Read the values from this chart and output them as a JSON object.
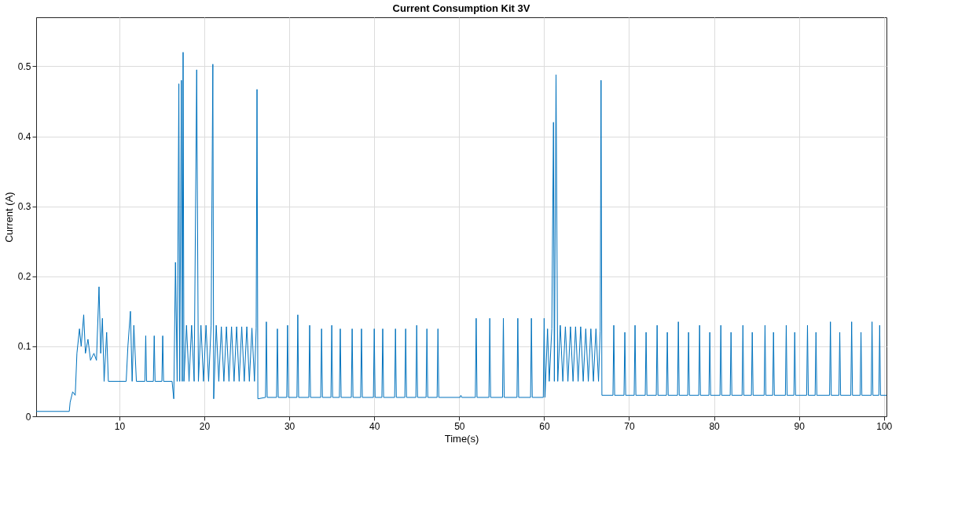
{
  "chart_data": {
    "type": "line",
    "title": "Current Consumption Kit 3V",
    "xlabel": "Time(s)",
    "ylabel": "Current (A)",
    "xlim": [
      0.2,
      100.3
    ],
    "xticks": [
      10,
      20,
      30,
      40,
      50,
      60,
      70,
      80,
      90,
      100
    ],
    "ylim": [
      0,
      0.57
    ],
    "yticks": [
      0,
      0.1,
      0.2,
      0.3,
      0.4,
      0.5
    ],
    "grid": true,
    "legend": false,
    "series": [
      {
        "color": "#0072bd",
        "x": [
          0.2,
          4.1,
          4.2,
          4.5,
          4.8,
          5.0,
          5.3,
          5.5,
          5.8,
          6.0,
          6.3,
          6.6,
          7.0,
          7.3,
          7.6,
          7.8,
          8.0,
          8.2,
          8.5,
          8.7,
          10.8,
          11.0,
          11.3,
          11.5,
          11.7,
          12.0,
          13.0,
          13.1,
          13.2,
          14.0,
          14.1,
          14.2,
          15.0,
          15.1,
          15.2,
          16.2,
          16.4,
          16.6,
          16.8,
          17.0,
          17.1,
          17.3,
          17.4,
          17.5,
          17.6,
          17.9,
          18.2,
          18.5,
          18.8,
          19.1,
          19.3,
          19.6,
          19.9,
          20.2,
          20.5,
          20.8,
          21.0,
          21.1,
          21.4,
          21.7,
          22.0,
          22.3,
          22.6,
          22.9,
          23.2,
          23.5,
          23.8,
          24.1,
          24.4,
          24.7,
          25.0,
          25.3,
          25.6,
          25.9,
          26.1,
          26.2,
          26.3,
          27.2,
          27.3,
          27.4,
          28.5,
          28.6,
          28.7,
          29.7,
          29.8,
          29.9,
          30.9,
          31.0,
          31.1,
          32.3,
          32.4,
          32.5,
          33.7,
          33.8,
          33.9,
          34.9,
          35.0,
          35.1,
          35.9,
          36.0,
          36.1,
          37.3,
          37.4,
          37.5,
          38.4,
          38.5,
          38.6,
          39.9,
          40.0,
          40.1,
          40.9,
          41.0,
          41.1,
          42.4,
          42.5,
          42.6,
          43.6,
          43.7,
          43.8,
          44.9,
          45.0,
          45.1,
          46.1,
          46.2,
          46.3,
          47.4,
          47.5,
          47.6,
          50.1,
          50.2,
          50.3,
          51.9,
          52.0,
          52.1,
          53.5,
          53.6,
          53.7,
          55.1,
          55.2,
          55.3,
          56.8,
          56.9,
          57.0,
          58.4,
          58.5,
          58.6,
          59.9,
          60.0,
          60.1,
          60.4,
          60.6,
          60.9,
          61.1,
          61.2,
          61.4,
          61.6,
          61.9,
          62.2,
          62.5,
          62.8,
          63.1,
          63.4,
          63.7,
          64.0,
          64.3,
          64.6,
          64.9,
          65.2,
          65.5,
          65.8,
          66.1,
          66.4,
          66.6,
          66.7,
          66.8,
          68.1,
          68.2,
          68.3,
          69.4,
          69.5,
          69.6,
          70.6,
          70.7,
          70.8,
          71.9,
          72.0,
          72.1,
          73.2,
          73.3,
          73.4,
          74.4,
          74.5,
          74.6,
          75.7,
          75.8,
          75.9,
          76.9,
          77.0,
          77.1,
          78.2,
          78.3,
          78.4,
          79.4,
          79.5,
          79.6,
          80.7,
          80.8,
          80.9,
          81.9,
          82.0,
          82.1,
          83.3,
          83.4,
          83.5,
          84.4,
          84.5,
          84.6,
          85.9,
          86.0,
          86.1,
          86.9,
          87.0,
          87.1,
          88.4,
          88.5,
          88.6,
          89.4,
          89.5,
          89.6,
          90.9,
          91.0,
          91.1,
          91.9,
          92.0,
          92.1,
          93.6,
          93.7,
          93.8,
          94.7,
          94.8,
          94.9,
          96.1,
          96.2,
          96.3,
          97.2,
          97.3,
          97.4,
          98.5,
          98.6,
          98.7,
          99.4,
          99.5,
          99.6,
          100.3
        ],
        "values": [
          0.007,
          0.007,
          0.02,
          0.035,
          0.03,
          0.09,
          0.125,
          0.1,
          0.145,
          0.09,
          0.11,
          0.08,
          0.09,
          0.08,
          0.185,
          0.09,
          0.14,
          0.05,
          0.12,
          0.05,
          0.05,
          0.1,
          0.15,
          0.05,
          0.13,
          0.05,
          0.05,
          0.115,
          0.05,
          0.05,
          0.115,
          0.05,
          0.05,
          0.115,
          0.05,
          0.05,
          0.025,
          0.22,
          0.05,
          0.475,
          0.05,
          0.48,
          0.05,
          0.52,
          0.05,
          0.13,
          0.05,
          0.13,
          0.05,
          0.495,
          0.05,
          0.13,
          0.05,
          0.13,
          0.05,
          0.13,
          0.503,
          0.025,
          0.13,
          0.05,
          0.128,
          0.05,
          0.128,
          0.05,
          0.128,
          0.05,
          0.128,
          0.05,
          0.128,
          0.05,
          0.128,
          0.05,
          0.126,
          0.05,
          0.126,
          0.467,
          0.025,
          0.027,
          0.135,
          0.027,
          0.027,
          0.125,
          0.027,
          0.027,
          0.13,
          0.027,
          0.027,
          0.145,
          0.027,
          0.027,
          0.13,
          0.027,
          0.027,
          0.125,
          0.027,
          0.027,
          0.13,
          0.027,
          0.027,
          0.125,
          0.027,
          0.027,
          0.125,
          0.027,
          0.027,
          0.125,
          0.027,
          0.027,
          0.125,
          0.027,
          0.027,
          0.125,
          0.027,
          0.027,
          0.125,
          0.027,
          0.027,
          0.125,
          0.027,
          0.027,
          0.13,
          0.027,
          0.027,
          0.125,
          0.027,
          0.027,
          0.125,
          0.027,
          0.027,
          0.03,
          0.027,
          0.027,
          0.14,
          0.027,
          0.027,
          0.14,
          0.027,
          0.027,
          0.14,
          0.027,
          0.027,
          0.14,
          0.027,
          0.027,
          0.14,
          0.027,
          0.027,
          0.14,
          0.027,
          0.125,
          0.05,
          0.125,
          0.42,
          0.05,
          0.488,
          0.05,
          0.13,
          0.05,
          0.128,
          0.05,
          0.128,
          0.05,
          0.128,
          0.05,
          0.128,
          0.05,
          0.125,
          0.05,
          0.125,
          0.05,
          0.125,
          0.05,
          0.122,
          0.48,
          0.03,
          0.03,
          0.13,
          0.03,
          0.03,
          0.12,
          0.03,
          0.03,
          0.13,
          0.03,
          0.03,
          0.12,
          0.03,
          0.03,
          0.13,
          0.03,
          0.03,
          0.12,
          0.03,
          0.03,
          0.135,
          0.03,
          0.03,
          0.12,
          0.03,
          0.03,
          0.13,
          0.03,
          0.03,
          0.12,
          0.03,
          0.03,
          0.13,
          0.03,
          0.03,
          0.12,
          0.03,
          0.03,
          0.13,
          0.03,
          0.03,
          0.12,
          0.03,
          0.03,
          0.13,
          0.03,
          0.03,
          0.12,
          0.03,
          0.03,
          0.13,
          0.03,
          0.03,
          0.12,
          0.03,
          0.03,
          0.13,
          0.03,
          0.03,
          0.12,
          0.03,
          0.03,
          0.135,
          0.03,
          0.03,
          0.12,
          0.03,
          0.03,
          0.135,
          0.03,
          0.03,
          0.12,
          0.03,
          0.03,
          0.135,
          0.03,
          0.03,
          0.13,
          0.03,
          0.03
        ]
      }
    ]
  }
}
